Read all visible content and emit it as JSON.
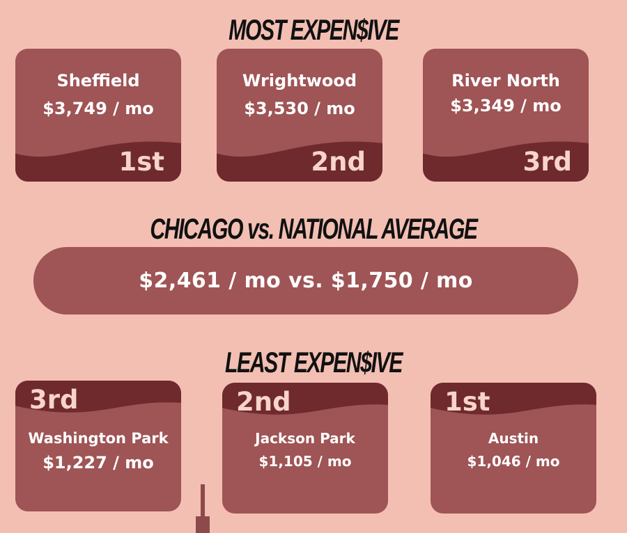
{
  "headings": {
    "most_expensive": "MOST EXPEN$IVE",
    "chicago_vs_national": "CHICAGO vs. NATIONAL AVERAGE",
    "least_expensive": "LEAST EXPEN$IVE"
  },
  "most_expensive": [
    {
      "neighborhood": "Sheffield",
      "rent": "$3,749 / mo",
      "rank": "1st"
    },
    {
      "neighborhood": "Wrightwood",
      "rent": "$3,530 / mo",
      "rank": "2nd"
    },
    {
      "neighborhood": "River North",
      "rent": "$3,349 / mo",
      "rank": "3rd"
    }
  ],
  "comparison": {
    "text": "$2,461 / mo vs. $1,750 / mo"
  },
  "least_expensive": [
    {
      "neighborhood": "Washington Park",
      "rent": "$1,227 / mo",
      "rank": "3rd"
    },
    {
      "neighborhood": "Jackson Park",
      "rent": "$1,105 / mo",
      "rank": "2nd"
    },
    {
      "neighborhood": "Austin",
      "rent": "$1,046 / mo",
      "rank": "1st"
    }
  ],
  "colors": {
    "background": "#f3bfb3",
    "card": "#9f5455",
    "wave": "#6f2a2e",
    "rank_text": "#f8d4ca",
    "heading": "#111111"
  }
}
